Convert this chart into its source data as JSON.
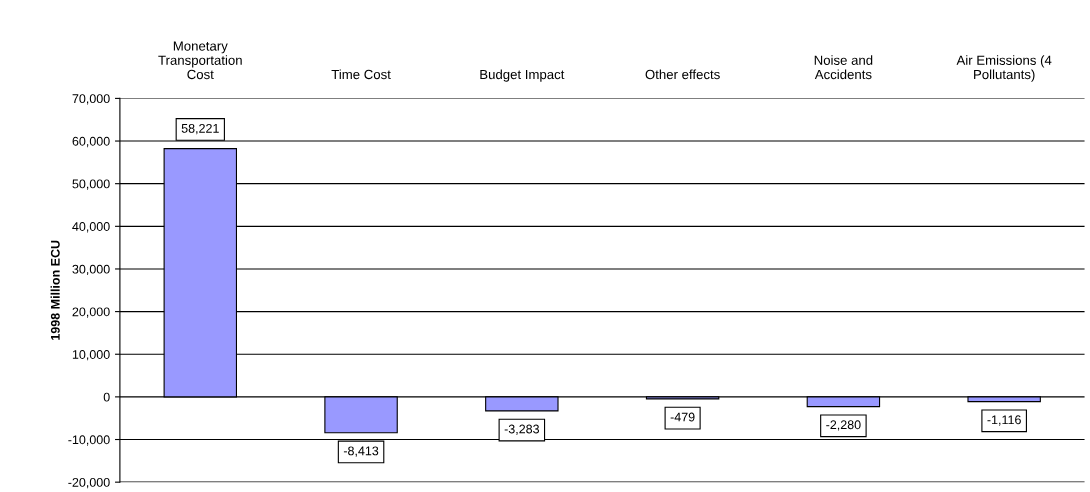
{
  "chart_data": {
    "type": "bar",
    "ylabel": "1998 Million ECU",
    "categories": [
      "Monetary\nTransportation\nCost",
      "Time Cost",
      "Budget Impact",
      "Other effects",
      "Noise and\nAccidents",
      "Air Emissions (4\nPollutants)"
    ],
    "values": [
      58221,
      -8413,
      -3283,
      -479,
      -2280,
      -1116
    ],
    "value_labels": [
      "58,221",
      "-8,413",
      "-3,283",
      "-479",
      "-2,280",
      "-1,116"
    ],
    "color": "#9999ff",
    "ylim": [
      -20000,
      70000
    ],
    "yticks": [
      {
        "value": -20000,
        "label": "-20,000"
      },
      {
        "value": -10000,
        "label": "-10,000"
      },
      0,
      {
        "value": 10000,
        "label": "10,000"
      },
      {
        "value": 20000,
        "label": "20,000"
      },
      {
        "value": 30000,
        "label": "30,000"
      },
      {
        "value": 40000,
        "label": "40,000"
      },
      {
        "value": 50000,
        "label": "50,000"
      },
      {
        "value": 60000,
        "label": "60,000"
      },
      {
        "value": 70000,
        "label": "70,000"
      }
    ],
    "grid": "y"
  }
}
